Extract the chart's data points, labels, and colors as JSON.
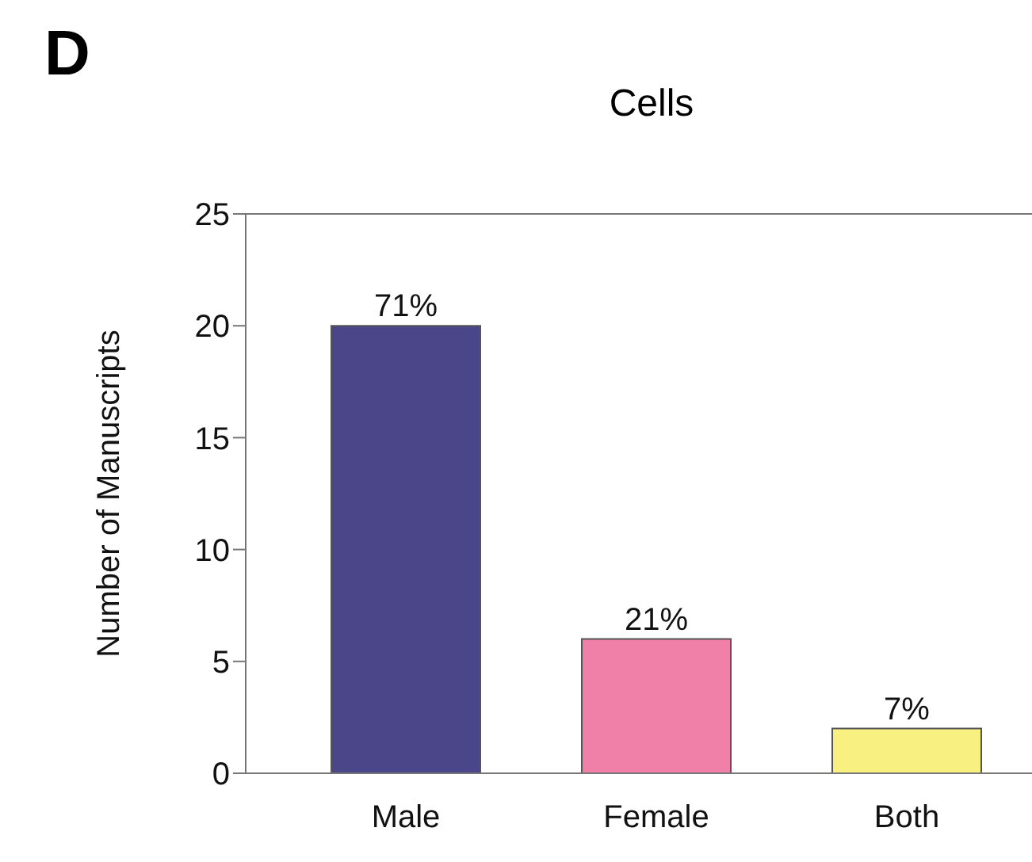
{
  "chart_data": {
    "type": "bar",
    "title": "Cells",
    "ylabel": "Number of Manuscripts",
    "categories": [
      "Male",
      "Female",
      "Both"
    ],
    "values": [
      20,
      6,
      2
    ],
    "colors": [
      "#4b4589",
      "#f080a8",
      "#f8f080"
    ],
    "annotations": [
      "D",
      {
        "text": "71%",
        "x": "Male",
        "y": 20
      },
      {
        "text": "21%",
        "x": "Female",
        "y": 6
      },
      {
        "text": "7%",
        "x": "Both",
        "y": 2
      }
    ],
    "ylim": [
      0,
      25
    ],
    "yticks": [
      0,
      5,
      10,
      15,
      20,
      25
    ],
    "grid": false,
    "legend": false
  }
}
